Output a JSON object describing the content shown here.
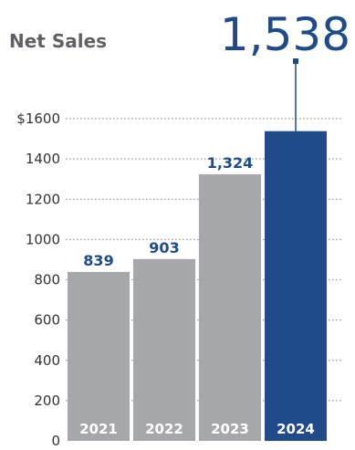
{
  "chart_data": {
    "type": "bar",
    "title": "Net Sales",
    "categories": [
      "2021",
      "2022",
      "2023",
      "2024"
    ],
    "values": [
      839,
      903,
      1324,
      1538
    ],
    "value_labels": [
      "839",
      "903",
      "1,324",
      "1,538"
    ],
    "ylim": [
      0,
      1600
    ],
    "yticks": [
      0,
      200,
      400,
      600,
      800,
      1000,
      1200,
      1400,
      1600
    ],
    "ytick_labels": [
      "0",
      "200",
      "400",
      "600",
      "800",
      "1000",
      "1200",
      "1400",
      "$1600"
    ],
    "grid": true,
    "highlight_index": 3,
    "colors": {
      "bar": "#a6a7ab",
      "highlight": "#1f4b8b",
      "label": "#1f4b8b",
      "title": "#5f6166",
      "tick": "#333333",
      "grid": "#9a9a9a"
    }
  }
}
